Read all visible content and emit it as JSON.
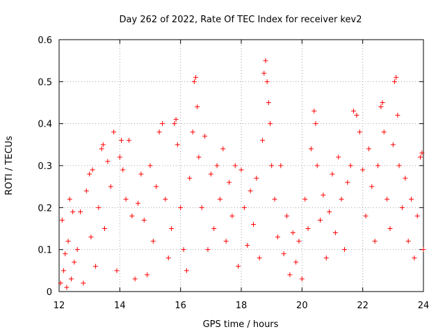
{
  "chart_data": {
    "type": "scatter",
    "title": "Day 262 of 2022, Rate Of TEC Index for receiver kev2",
    "xlabel": "GPS time / hours",
    "ylabel": "ROTI / TECUs",
    "xlim": [
      12,
      24
    ],
    "ylim": [
      0,
      0.6
    ],
    "x_ticks": [
      "12",
      "14",
      "16",
      "18",
      "20",
      "22",
      "24"
    ],
    "y_ticks": [
      "0",
      "0.1",
      "0.2",
      "0.3",
      "0.4",
      "0.5",
      "0.6"
    ],
    "grid": true,
    "legend": "none",
    "marker": "plus",
    "color": "#ff0000",
    "points": [
      [
        12.05,
        0.02
      ],
      [
        12.1,
        0.17
      ],
      [
        12.15,
        0.05
      ],
      [
        12.2,
        0.09
      ],
      [
        12.25,
        0.01
      ],
      [
        12.3,
        0.12
      ],
      [
        12.35,
        0.22
      ],
      [
        12.4,
        0.03
      ],
      [
        12.45,
        0.19
      ],
      [
        12.5,
        0.07
      ],
      [
        12.6,
        0.1
      ],
      [
        12.7,
        0.19
      ],
      [
        12.8,
        0.02
      ],
      [
        12.9,
        0.24
      ],
      [
        13.0,
        0.28
      ],
      [
        13.05,
        0.13
      ],
      [
        13.1,
        0.29
      ],
      [
        13.2,
        0.06
      ],
      [
        13.3,
        0.2
      ],
      [
        13.4,
        0.34
      ],
      [
        13.45,
        0.35
      ],
      [
        13.5,
        0.15
      ],
      [
        13.6,
        0.31
      ],
      [
        13.7,
        0.25
      ],
      [
        13.8,
        0.38
      ],
      [
        13.9,
        0.05
      ],
      [
        14.0,
        0.32
      ],
      [
        14.05,
        0.36
      ],
      [
        14.1,
        0.29
      ],
      [
        14.2,
        0.22
      ],
      [
        14.3,
        0.36
      ],
      [
        14.4,
        0.18
      ],
      [
        14.5,
        0.03
      ],
      [
        14.6,
        0.21
      ],
      [
        14.7,
        0.28
      ],
      [
        14.8,
        0.17
      ],
      [
        14.9,
        0.04
      ],
      [
        15.0,
        0.3
      ],
      [
        15.1,
        0.12
      ],
      [
        15.2,
        0.25
      ],
      [
        15.3,
        0.38
      ],
      [
        15.4,
        0.4
      ],
      [
        15.5,
        0.22
      ],
      [
        15.6,
        0.08
      ],
      [
        15.7,
        0.15
      ],
      [
        15.8,
        0.4
      ],
      [
        15.85,
        0.41
      ],
      [
        15.9,
        0.35
      ],
      [
        16.0,
        0.2
      ],
      [
        16.1,
        0.1
      ],
      [
        16.2,
        0.05
      ],
      [
        16.3,
        0.27
      ],
      [
        16.4,
        0.38
      ],
      [
        16.45,
        0.5
      ],
      [
        16.5,
        0.51
      ],
      [
        16.55,
        0.44
      ],
      [
        16.6,
        0.32
      ],
      [
        16.7,
        0.2
      ],
      [
        16.8,
        0.37
      ],
      [
        16.9,
        0.1
      ],
      [
        17.0,
        0.28
      ],
      [
        17.1,
        0.15
      ],
      [
        17.2,
        0.3
      ],
      [
        17.3,
        0.22
      ],
      [
        17.4,
        0.34
      ],
      [
        17.5,
        0.12
      ],
      [
        17.6,
        0.26
      ],
      [
        17.7,
        0.18
      ],
      [
        17.8,
        0.3
      ],
      [
        17.9,
        0.06
      ],
      [
        18.0,
        0.29
      ],
      [
        18.1,
        0.2
      ],
      [
        18.2,
        0.11
      ],
      [
        18.3,
        0.24
      ],
      [
        18.4,
        0.16
      ],
      [
        18.5,
        0.27
      ],
      [
        18.6,
        0.08
      ],
      [
        18.7,
        0.36
      ],
      [
        18.75,
        0.52
      ],
      [
        18.8,
        0.55
      ],
      [
        18.85,
        0.5
      ],
      [
        18.9,
        0.45
      ],
      [
        18.95,
        0.4
      ],
      [
        19.0,
        0.3
      ],
      [
        19.1,
        0.22
      ],
      [
        19.2,
        0.13
      ],
      [
        19.3,
        0.3
      ],
      [
        19.4,
        0.09
      ],
      [
        19.5,
        0.18
      ],
      [
        19.6,
        0.04
      ],
      [
        19.7,
        0.14
      ],
      [
        19.8,
        0.07
      ],
      [
        19.9,
        0.12
      ],
      [
        20.0,
        0.03
      ],
      [
        20.1,
        0.22
      ],
      [
        20.2,
        0.15
      ],
      [
        20.3,
        0.34
      ],
      [
        20.4,
        0.43
      ],
      [
        20.45,
        0.4
      ],
      [
        20.5,
        0.3
      ],
      [
        20.6,
        0.17
      ],
      [
        20.7,
        0.23
      ],
      [
        20.8,
        0.08
      ],
      [
        20.9,
        0.19
      ],
      [
        21.0,
        0.28
      ],
      [
        21.1,
        0.14
      ],
      [
        21.2,
        0.32
      ],
      [
        21.3,
        0.22
      ],
      [
        21.4,
        0.1
      ],
      [
        21.5,
        0.26
      ],
      [
        21.6,
        0.3
      ],
      [
        21.7,
        0.43
      ],
      [
        21.8,
        0.42
      ],
      [
        21.9,
        0.38
      ],
      [
        22.0,
        0.29
      ],
      [
        22.1,
        0.18
      ],
      [
        22.2,
        0.34
      ],
      [
        22.3,
        0.25
      ],
      [
        22.4,
        0.12
      ],
      [
        22.5,
        0.3
      ],
      [
        22.6,
        0.44
      ],
      [
        22.65,
        0.45
      ],
      [
        22.7,
        0.38
      ],
      [
        22.8,
        0.22
      ],
      [
        22.9,
        0.15
      ],
      [
        23.0,
        0.35
      ],
      [
        23.05,
        0.5
      ],
      [
        23.1,
        0.51
      ],
      [
        23.15,
        0.42
      ],
      [
        23.2,
        0.3
      ],
      [
        23.3,
        0.2
      ],
      [
        23.4,
        0.27
      ],
      [
        23.5,
        0.12
      ],
      [
        23.6,
        0.22
      ],
      [
        23.7,
        0.08
      ],
      [
        23.8,
        0.18
      ],
      [
        23.9,
        0.32
      ],
      [
        23.95,
        0.33
      ],
      [
        24.0,
        0.1
      ]
    ]
  }
}
